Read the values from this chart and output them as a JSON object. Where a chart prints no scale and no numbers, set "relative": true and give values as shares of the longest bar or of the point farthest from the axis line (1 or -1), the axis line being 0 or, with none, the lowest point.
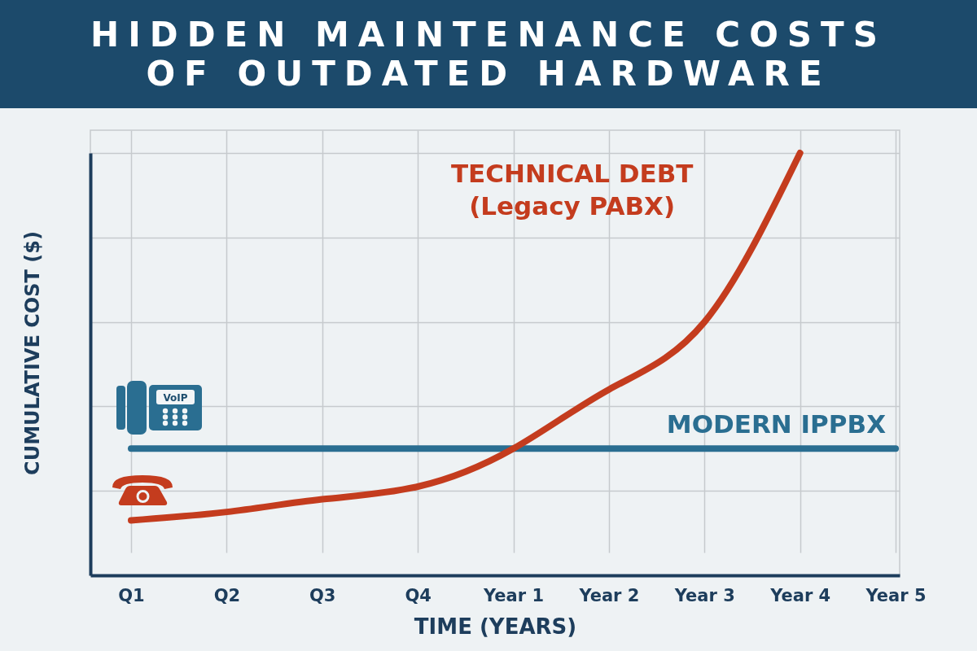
{
  "chart_data": {
    "type": "line",
    "title": "HIDDEN MAINTENANCE COSTS OF OUTDATED HARDWARE",
    "xlabel": "TIME (YEARS)",
    "ylabel": "CUMULATIVE COST ($)",
    "categories": [
      "Q1",
      "Q2",
      "Q3",
      "Q4",
      "Year 1",
      "Year 2",
      "Year 3",
      "Year 4",
      "Year 5"
    ],
    "series": [
      {
        "name": "TECHNICAL DEBT (Legacy PABX)",
        "color": "#c43c1e",
        "values": [
          0.13,
          0.15,
          0.18,
          0.21,
          0.3,
          0.44,
          0.6,
          1,
          null
        ]
      },
      {
        "name": "MODERN IPPBX",
        "color": "#2a6e91",
        "values": [
          0.3,
          0.3,
          0.3,
          0.3,
          0.3,
          0.3,
          0.3,
          0.3,
          0.3
        ]
      }
    ],
    "relative": true,
    "grid": true,
    "line_style": "solid",
    "annotations": [
      "VoIP"
    ]
  }
}
